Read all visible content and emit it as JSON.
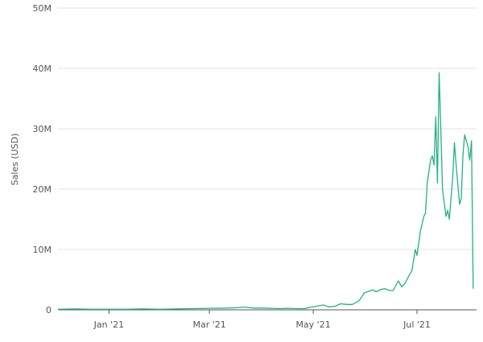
{
  "chart_data": {
    "type": "line",
    "y_label": "Sales (USD)",
    "x": [
      -30,
      -20,
      -10,
      0,
      10,
      20,
      30,
      40,
      50,
      60,
      70,
      75,
      80,
      85,
      90,
      95,
      100,
      105,
      110,
      115,
      118,
      122,
      126,
      129,
      133,
      136,
      140,
      143,
      147,
      150,
      153,
      155,
      157,
      160,
      162,
      165,
      167,
      170,
      172,
      174,
      176,
      178,
      180,
      181,
      183,
      185,
      186,
      187,
      189,
      190,
      191,
      192,
      193,
      194,
      195,
      196,
      198,
      199,
      200,
      202,
      203,
      204,
      206,
      207,
      208,
      209,
      211,
      212,
      213,
      214
    ],
    "series": [
      {
        "name": "Sales",
        "color": "#22b37f",
        "values": [
          0.1,
          0.15,
          0.1,
          0.1,
          0.1,
          0.15,
          0.1,
          0.15,
          0.2,
          0.25,
          0.3,
          0.35,
          0.45,
          0.3,
          0.3,
          0.25,
          0.2,
          0.25,
          0.2,
          0.2,
          0.4,
          0.6,
          0.8,
          0.5,
          0.6,
          1.0,
          0.9,
          0.9,
          1.5,
          2.8,
          3.1,
          3.3,
          3.0,
          3.4,
          3.5,
          3.2,
          3.2,
          4.8,
          3.8,
          4.4,
          5.5,
          6.5,
          10,
          9,
          13,
          15.5,
          16,
          21,
          24.8,
          25.5,
          24,
          32,
          21,
          39.3,
          30,
          20,
          15.5,
          16.5,
          15,
          22,
          27.7,
          24,
          17.5,
          18.5,
          25.7,
          29,
          27,
          24.8,
          28,
          3.5
        ]
      }
    ],
    "xlim": [
      -30,
      216
    ],
    "xticks": [
      {
        "value": 0,
        "label": "Jan '21"
      },
      {
        "value": 59,
        "label": "Mar '21"
      },
      {
        "value": 120,
        "label": "May '21"
      },
      {
        "value": 181,
        "label": "Jul '21"
      }
    ],
    "ylim": [
      0,
      50
    ],
    "yticks": [
      {
        "value": 0,
        "label": "0"
      },
      {
        "value": 10,
        "label": "10M"
      },
      {
        "value": 20,
        "label": "20M"
      },
      {
        "value": 30,
        "label": "30M"
      },
      {
        "value": 40,
        "label": "40M"
      },
      {
        "value": 50,
        "label": "50M"
      }
    ],
    "grid": true
  }
}
